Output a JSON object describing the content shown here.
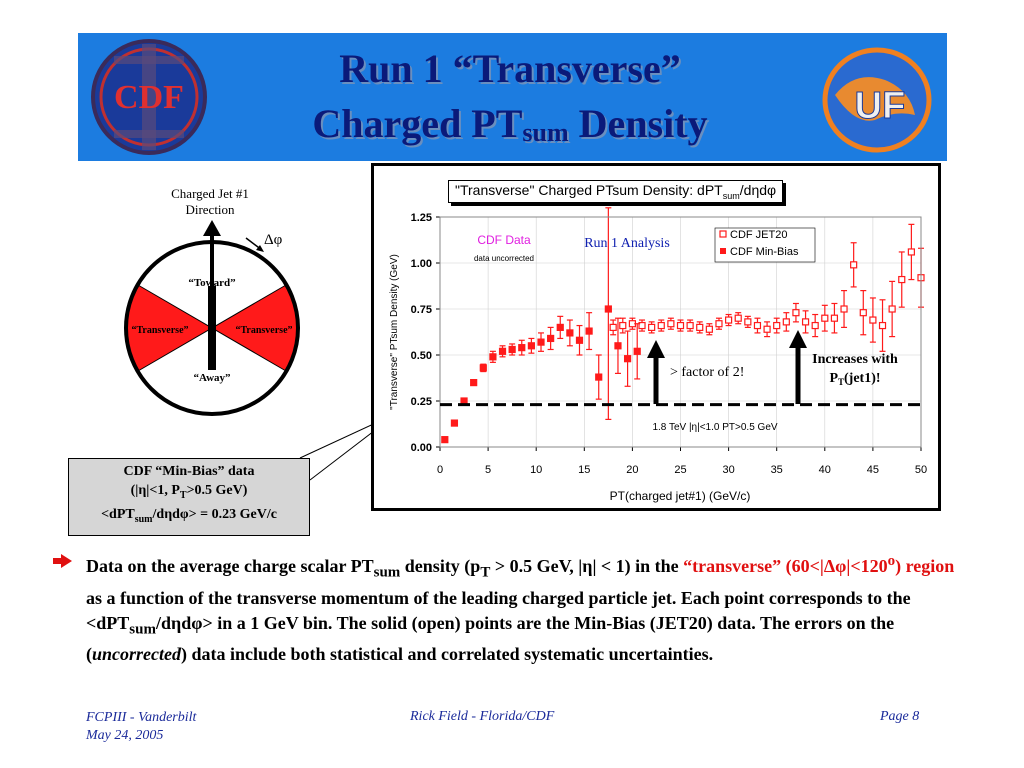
{
  "slide": {
    "title_line1": "Run 1 “Transverse”",
    "title_line2_main": "Charged PT",
    "title_line2_sub": "sum",
    "title_line2_end": " Density",
    "logos": {
      "left": "CDF",
      "right": "UF"
    }
  },
  "diagram": {
    "jet_label_line1": "Charged Jet #1",
    "jet_label_line2": "Direction",
    "delta_phi": "Δφ",
    "toward": "“Toward”",
    "transverse_left": "“Transverse”",
    "transverse_right": "“Transverse”",
    "away": "“Away”",
    "region_color": "#ff1a1a"
  },
  "infobox": {
    "line1": "CDF “Min-Bias” data",
    "line2": "(|η|<1, P",
    "line2_sub": "T",
    "line2_end": ">0.5 GeV)",
    "line3": "<dPT",
    "line3_sub": "sum",
    "line3_end": "/dηdφ> = 0.23 GeV/c"
  },
  "chart_data": {
    "type": "scatter",
    "title": "\"Transverse\" Charged PTsum Density: dPT",
    "title_sub": "sum",
    "title_end": "/dηdφ",
    "xlabel": "PT(charged jet#1)  (GeV/c)",
    "ylabel": "\"Transverse\" PTsum Density (GeV)",
    "xlim": [
      0,
      50
    ],
    "ylim": [
      0,
      1.25
    ],
    "xticks": [
      "0",
      "5",
      "10",
      "15",
      "20",
      "25",
      "30",
      "35",
      "40",
      "45",
      "50"
    ],
    "yticks": [
      "0.00",
      "0.25",
      "0.50",
      "0.75",
      "1.00",
      "1.25"
    ],
    "cdf_data_label": "CDF Data",
    "cdf_data_sublabel": "data uncorrected",
    "analysis_label": "Run 1 Analysis",
    "energy_label": "1.8 TeV |η|<1.0 PT>0.5 GeV",
    "reference_line": {
      "y": 0.23
    },
    "annotations": {
      "factor": "> factor of 2!",
      "increases_line1": "Increases with",
      "increases_line2": "P",
      "increases_sub": "T",
      "increases_end": "(jet1)!"
    },
    "series": [
      {
        "name": "CDF JET20",
        "marker": "open-square",
        "color": "#ff1a1a",
        "x": [
          18,
          19,
          20,
          21,
          22,
          23,
          24,
          25,
          26,
          27,
          28,
          29,
          30,
          31,
          32,
          33,
          34,
          35,
          36,
          37,
          38,
          39,
          40,
          41,
          42,
          43,
          44,
          45,
          46,
          47,
          48,
          49,
          50
        ],
        "y": [
          0.65,
          0.66,
          0.67,
          0.66,
          0.65,
          0.66,
          0.67,
          0.66,
          0.66,
          0.65,
          0.64,
          0.67,
          0.69,
          0.7,
          0.68,
          0.66,
          0.64,
          0.66,
          0.68,
          0.73,
          0.68,
          0.66,
          0.7,
          0.7,
          0.75,
          0.99,
          0.73,
          0.69,
          0.66,
          0.75,
          0.91,
          1.06,
          0.92
        ],
        "err": [
          0.04,
          0.04,
          0.03,
          0.03,
          0.03,
          0.03,
          0.03,
          0.03,
          0.03,
          0.03,
          0.03,
          0.03,
          0.03,
          0.03,
          0.03,
          0.04,
          0.04,
          0.04,
          0.05,
          0.05,
          0.06,
          0.06,
          0.07,
          0.08,
          0.1,
          0.12,
          0.12,
          0.12,
          0.14,
          0.15,
          0.15,
          0.15,
          0.16
        ]
      },
      {
        "name": "CDF Min-Bias",
        "marker": "filled-square",
        "color": "#ff1a1a",
        "x": [
          0.5,
          1.5,
          2.5,
          3.5,
          4.5,
          5.5,
          6.5,
          7.5,
          8.5,
          9.5,
          10.5,
          11.5,
          12.5,
          13.5,
          14.5,
          15.5,
          16.5,
          17.5,
          18.5,
          19.5,
          20.5
        ],
        "y": [
          0.04,
          0.13,
          0.25,
          0.35,
          0.43,
          0.49,
          0.52,
          0.53,
          0.54,
          0.55,
          0.57,
          0.59,
          0.65,
          0.62,
          0.58,
          0.63,
          0.38,
          0.75,
          0.55,
          0.48,
          0.52
        ],
        "err": [
          0.005,
          0.005,
          0.01,
          0.01,
          0.02,
          0.03,
          0.03,
          0.03,
          0.04,
          0.04,
          0.05,
          0.06,
          0.06,
          0.07,
          0.08,
          0.1,
          0.12,
          0.6,
          0.15,
          0.15,
          0.15
        ]
      }
    ]
  },
  "paragraph": {
    "p1": "Data on the average charge scalar PT",
    "p1_sub": "sum",
    "p2": " density (p",
    "p2_sub": "T",
    "p3": " > 0.5 GeV, |η| < 1) in the ",
    "red1": "“transverse” (60<|Δφ|<120",
    "red_sup": "o",
    "red2": ") region",
    "p4": " as a function of the transverse momentum of the leading charged particle jet. Each point corresponds to the <dPT",
    "p4_sub": "sum",
    "p5": "/dηdφ>  in a 1 GeV bin. The solid (open) points are the Min-Bias (JET20) data. The errors on the (",
    "p5_italic": "uncorrected",
    "p6": ") data include both statistical and correlated systematic uncertainties."
  },
  "footer": {
    "left_line1": "FCPIII - Vanderbilt",
    "left_line2": "May 24, 2005",
    "center": "Rick Field - Florida/CDF",
    "right": "Page 8"
  }
}
